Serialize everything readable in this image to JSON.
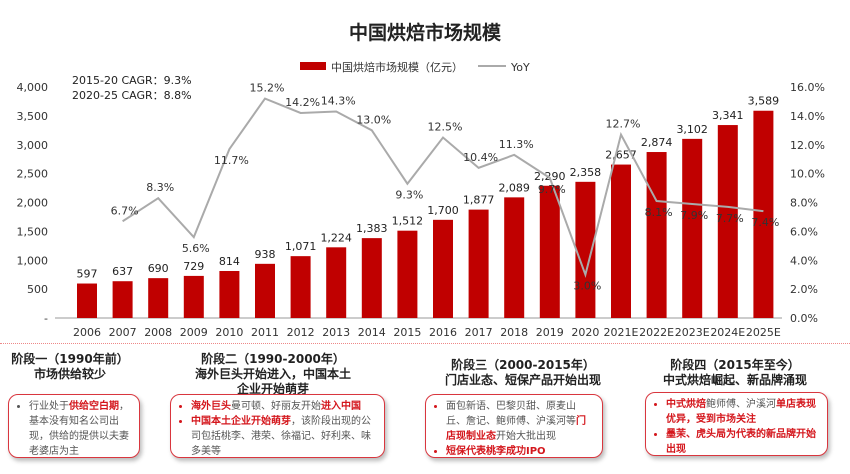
{
  "chart_data": {
    "type": "bar+line",
    "title": "中国烘焙市场规模",
    "categories": [
      "2006",
      "2007",
      "2008",
      "2009",
      "2010",
      "2011",
      "2012",
      "2013",
      "2014",
      "2015",
      "2016",
      "2017",
      "2018",
      "2019",
      "2020",
      "2021E",
      "2022E",
      "2023E",
      "2024E",
      "2025E"
    ],
    "series": [
      {
        "name": "中国烘焙市场规模（亿元）",
        "type": "bar",
        "axis": "left",
        "color": "#c00000",
        "values": [
          597,
          637,
          690,
          729,
          814,
          938,
          1071,
          1224,
          1383,
          1512,
          1700,
          1877,
          2089,
          2290,
          2358,
          2657,
          2874,
          3102,
          3341,
          3589
        ]
      },
      {
        "name": "YoY",
        "type": "line",
        "axis": "right",
        "color": "#aaaaaa",
        "values": [
          null,
          6.7,
          8.3,
          5.6,
          11.7,
          15.2,
          14.2,
          14.3,
          13.0,
          9.3,
          12.5,
          10.4,
          11.3,
          9.7,
          3.0,
          12.7,
          8.1,
          7.9,
          7.7,
          7.4
        ]
      }
    ],
    "y_left": {
      "range": [
        0,
        4000
      ],
      "ticks": [
        "-",
        "500",
        "1,000",
        "1,500",
        "2,000",
        "2,500",
        "3,000",
        "3,500",
        "4,000"
      ]
    },
    "y_right": {
      "range": [
        0,
        16
      ],
      "ticks": [
        "0.0%",
        "2.0%",
        "4.0%",
        "6.0%",
        "8.0%",
        "10.0%",
        "12.0%",
        "14.0%",
        "16.0%"
      ]
    },
    "legend_position": "top",
    "annotations": [
      "2015-20 CAGR：9.3%",
      "2020-25 CAGR：8.8%"
    ]
  },
  "stages": [
    {
      "title": [
        "阶段一（1990年前）",
        "市场供给较少"
      ],
      "items": [
        [
          {
            "t": "行业处于"
          },
          {
            "t": "供给空白期",
            "r": true
          },
          {
            "t": "，基本没有知名公司出现，供给的提供以夫妻老婆店为主"
          }
        ]
      ]
    },
    {
      "title": [
        "阶段二（1990-2000年）",
        "海外巨头开始进入，中国本土",
        "企业开始萌芽"
      ],
      "items": [
        [
          {
            "t": "海外巨头",
            "r": true
          },
          {
            "t": "曼可顿、好丽友开始"
          },
          {
            "t": "进入中国",
            "r": true
          }
        ],
        [
          {
            "t": "中国本土企业开始萌芽",
            "r": true
          },
          {
            "t": "，该阶段出现的公司包括桃李、港荣、徐福记、好利来、味多美等"
          }
        ]
      ]
    },
    {
      "title": [
        "阶段三（2000-2015年）",
        "门店业态、短保产品开始出现"
      ],
      "items": [
        [
          {
            "t": "面包新语、巴黎贝甜、原麦山丘、詹记、鲍师傅、沪溪河等"
          },
          {
            "t": "门店现制业态",
            "r": true
          },
          {
            "t": "开始大批出现"
          }
        ],
        [
          {
            "t": "短保代表桃李成功IPO",
            "r": true
          }
        ]
      ]
    },
    {
      "title": [
        "阶段四（2015年至今）",
        "中式烘焙崛起、新品牌涌现"
      ],
      "items": [
        [
          {
            "t": "中式烘焙",
            "r": true
          },
          {
            "t": "鲍师傅、沪溪河"
          },
          {
            "t": "单店表现优异，受到市场关注",
            "r": true
          }
        ],
        [
          {
            "t": "墨茉、虎头局为代表的新品牌开始出现",
            "r": true
          }
        ]
      ]
    }
  ]
}
